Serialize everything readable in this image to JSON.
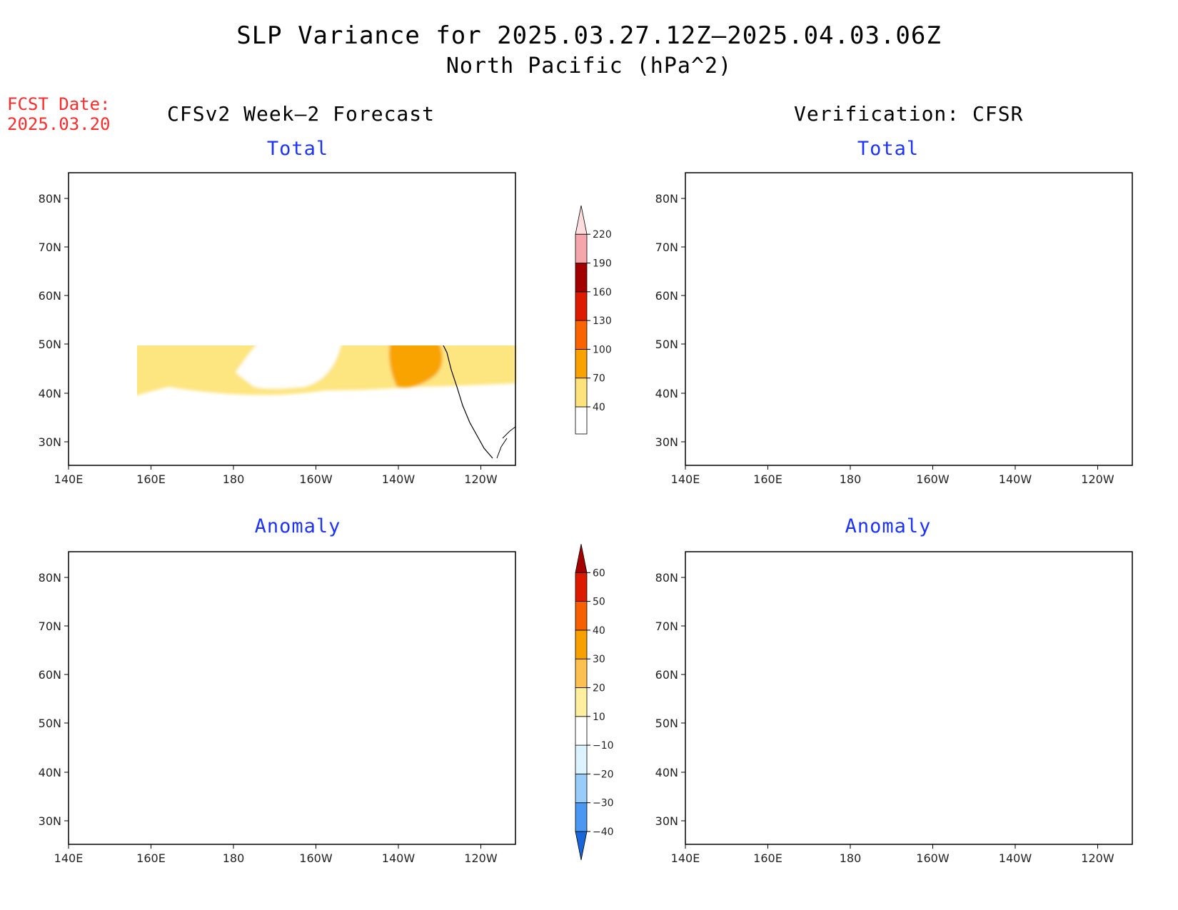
{
  "title": {
    "line1": "SLP Variance for 2025.03.27.12Z—2025.04.03.06Z",
    "line2": "North Pacific (hPa^2)"
  },
  "fcst": {
    "label": "FCST Date:",
    "date": "2025.03.20"
  },
  "columns": {
    "left": "CFSv2 Week—2 Forecast",
    "right": "Verification: CFSR"
  },
  "panels": {
    "top_left": "Total",
    "top_right": "Total",
    "bottom_left": "Anomaly",
    "bottom_right": "Anomaly"
  },
  "axes": {
    "lon_labels": [
      "140E",
      "160E",
      "180",
      "160W",
      "140W",
      "120W"
    ],
    "lat_labels": [
      "80N",
      "70N",
      "60N",
      "50N",
      "40N",
      "30N"
    ]
  },
  "colorbar_total": {
    "labels": [
      "40",
      "70",
      "100",
      "130",
      "160",
      "190",
      "220"
    ],
    "colors": [
      "#fee37c",
      "#f8a100",
      "#f96300",
      "#dd1b00",
      "#a20000",
      "#f4a6aa",
      "#fcdcdc"
    ]
  },
  "colorbar_anomaly": {
    "labels": [
      "−40",
      "−30",
      "−20",
      "−10",
      "10",
      "20",
      "30",
      "40",
      "50",
      "60"
    ],
    "colors": [
      "#1866d8",
      "#4a98f2",
      "#98cdfa",
      "#dcf4ff",
      "#ffffff",
      "#fff0a0",
      "#fcc050",
      "#f8a000",
      "#f76000",
      "#dc1a00",
      "#a50000"
    ]
  },
  "colors": {
    "yellow": "#fde57f",
    "orange": "#f8a300",
    "dark_orange": "#f66400",
    "red": "#dc1e00",
    "dark_red": "#a50000",
    "pink": "#f3a6aa",
    "light_pink": "#fde0e0",
    "blue": "#1866d8",
    "mid_blue": "#4a98f2",
    "light_blue": "#98cdfa",
    "pale_blue": "#dcf4ff",
    "pale_yellow": "#fff3a8"
  }
}
